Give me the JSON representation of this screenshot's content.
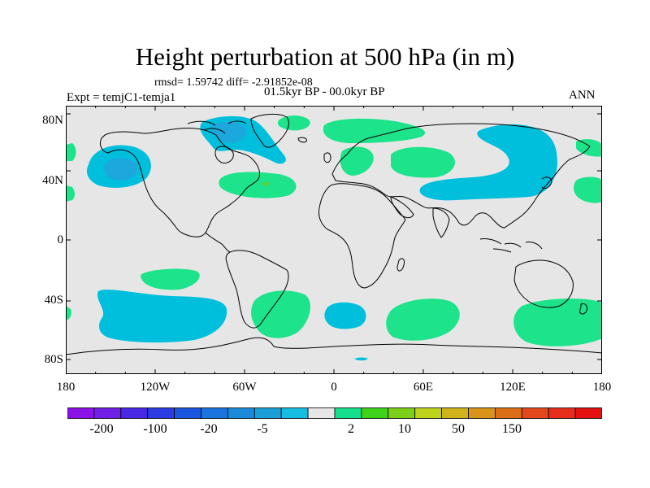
{
  "title": "Height perturbation at 500 hPa (in m)",
  "stats": "rmsd= 1.59742 diff= -2.91852e-08",
  "period": "01.5kyr BP - 00.0kyr BP",
  "experiment": "Expt = temjC1-temja1",
  "season": "ANN",
  "map": {
    "ocean_color": "#e6e6e6",
    "coast_color": "#000000",
    "lat_labels": [
      "80N",
      "40N",
      "0",
      "40S",
      "80S"
    ],
    "lon_labels": [
      "180",
      "120W",
      "60W",
      "0",
      "60E",
      "120E",
      "180"
    ],
    "contour_fills": {
      "neg_light": "#00bfdc",
      "neg_mid": "#1ca8dc",
      "pos_light": "#1de38a",
      "pos_mid": "#55d23d"
    }
  },
  "colorbar": {
    "colors": [
      "#8a12e6",
      "#6f1fe6",
      "#4828e4",
      "#2b3ce3",
      "#1b56e0",
      "#1b74dd",
      "#1b8ad9",
      "#1aa0d6",
      "#15bee0",
      "#e6e6e6",
      "#14e08c",
      "#3fd21b",
      "#7cd01a",
      "#bfd21b",
      "#d0b21a",
      "#d79418",
      "#dd6e17",
      "#e2481a",
      "#e62e1a",
      "#e51212"
    ],
    "tick_labels": [
      "-200",
      "-100",
      "-20",
      "-5",
      "2",
      "10",
      "50",
      "150"
    ]
  },
  "icons": [
    "world-coastlines-icon"
  ]
}
